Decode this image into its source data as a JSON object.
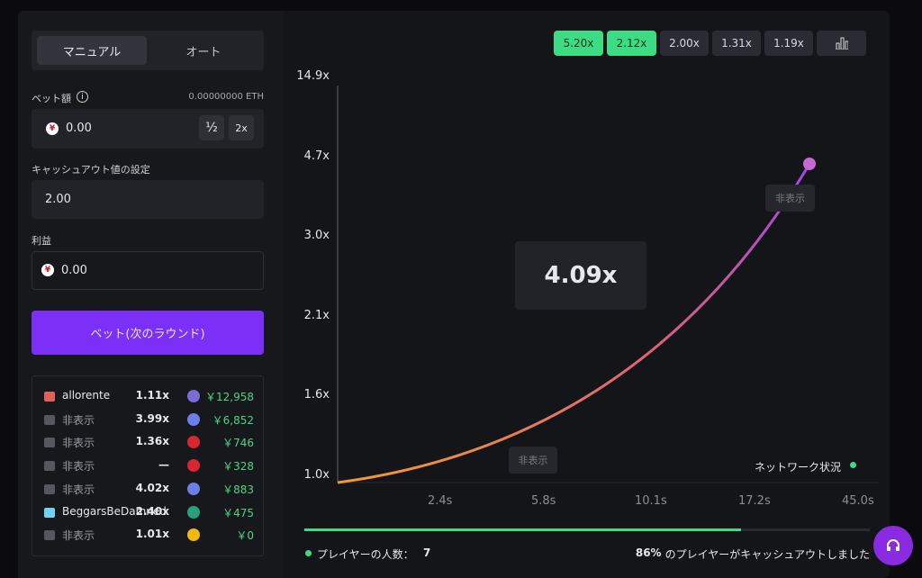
{
  "tabs": [
    "マニュアル",
    "オート"
  ],
  "bet": {
    "label": "ベット額",
    "balance": "0.00000000 ETH",
    "amount": "0.00",
    "half": "½",
    "double": "2x"
  },
  "cashout": {
    "label": "キャッシュアウト値の設定",
    "value": "2.00"
  },
  "profit": {
    "label": "利益",
    "value": "0.00"
  },
  "bet_button": "ベット(次のラウンド)",
  "players": [
    {
      "name": "allorente",
      "multiplier": "1.11x",
      "amount": "￥12,958"
    },
    {
      "name": "非表示",
      "multiplier": "3.99x",
      "amount": "￥6,852"
    },
    {
      "name": "非表示",
      "multiplier": "1.36x",
      "amount": "￥746"
    },
    {
      "name": "非表示",
      "multiplier": "—",
      "amount": "￥328"
    },
    {
      "name": "非表示",
      "multiplier": "4.02x",
      "amount": "￥883"
    },
    {
      "name": "BeggarsBeDamned",
      "multiplier": "2.40x",
      "amount": "￥475"
    },
    {
      "name": "非表示",
      "multiplier": "1.01x",
      "amount": "￥0"
    }
  ],
  "history": [
    "5.20x",
    "2.12x",
    "2.00x",
    "1.31x",
    "1.19x"
  ],
  "graph": {
    "y_labels": [
      "14.9x",
      "4.7x",
      "3.0x",
      "2.1x",
      "1.6x",
      "1.0x"
    ],
    "x_labels": [
      "2.4s",
      "5.8s",
      "10.1s",
      "17.2s",
      "45.0s"
    ],
    "multiplier": "4.09x",
    "hidden_tags": [
      "非表示",
      "非表示"
    ],
    "network": "ネットワーク状況"
  },
  "footer": {
    "players_label": "プレイヤーの人数：",
    "players_count": "7",
    "cashout_percent": "86%",
    "cashout_text": "のプレイヤーがキャッシュアウトしました"
  }
}
